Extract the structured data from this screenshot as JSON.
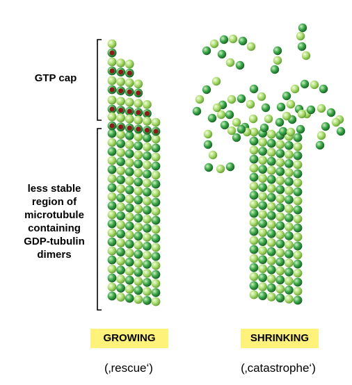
{
  "labels": {
    "gtp_cap": "GTP cap",
    "gdp_region": [
      "less stable",
      "region of",
      "microtubule",
      "containing",
      "GDP-tubulin",
      "dimers"
    ]
  },
  "panels": {
    "growing": {
      "title": "GROWING",
      "subtitle": "(‚rescue‘)"
    },
    "shrinking": {
      "title": "SHRINKING",
      "subtitle": "(‚catastrophe‘)"
    }
  },
  "colors": {
    "alpha_tubulin": "#a6d86a",
    "beta_tubulin": "#3ea84a",
    "gtp": "#8b1a1a",
    "label_highlight": "#fff27a"
  }
}
